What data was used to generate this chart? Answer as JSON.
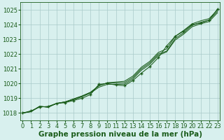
{
  "x": [
    0,
    1,
    2,
    3,
    4,
    5,
    6,
    7,
    8,
    9,
    10,
    11,
    12,
    13,
    14,
    15,
    16,
    17,
    18,
    19,
    20,
    21,
    22,
    23
  ],
  "line_upper": [
    1018.0,
    1018.1,
    1018.45,
    1018.4,
    1018.65,
    1018.75,
    1018.95,
    1019.15,
    1019.4,
    1019.85,
    1020.05,
    1020.1,
    1020.15,
    1020.5,
    1021.1,
    1021.5,
    1022.1,
    1022.35,
    1023.2,
    1023.6,
    1024.05,
    1024.25,
    1024.4,
    1025.0
  ],
  "line_mid1": [
    1018.0,
    1018.1,
    1018.45,
    1018.4,
    1018.65,
    1018.75,
    1018.95,
    1019.15,
    1019.4,
    1019.85,
    1020.05,
    1020.05,
    1020.05,
    1020.4,
    1021.0,
    1021.4,
    1022.0,
    1022.2,
    1023.05,
    1023.45,
    1023.95,
    1024.15,
    1024.3,
    1024.9
  ],
  "line_mid2": [
    1018.0,
    1018.1,
    1018.45,
    1018.4,
    1018.65,
    1018.75,
    1018.9,
    1019.1,
    1019.35,
    1019.75,
    1019.95,
    1019.95,
    1019.95,
    1020.3,
    1020.9,
    1021.3,
    1021.9,
    1022.15,
    1022.95,
    1023.35,
    1023.85,
    1024.05,
    1024.2,
    1024.8
  ],
  "line_marked": [
    1018.0,
    1018.15,
    1018.4,
    1018.45,
    1018.65,
    1018.7,
    1018.85,
    1019.0,
    1019.25,
    1019.95,
    1020.0,
    1019.9,
    1019.85,
    1020.2,
    1020.7,
    1021.15,
    1021.75,
    1022.55,
    1023.2,
    1023.55,
    1024.0,
    1024.1,
    1024.3,
    1025.05
  ],
  "background_color": "#d8f0ee",
  "grid_color": "#aacaca",
  "line_color": "#1a5c1a",
  "xlabel": "Graphe pression niveau de la mer (hPa)",
  "ylim": [
    1017.5,
    1025.5
  ],
  "yticks": [
    1018,
    1019,
    1020,
    1021,
    1022,
    1023,
    1024,
    1025
  ],
  "xticks": [
    0,
    1,
    2,
    3,
    4,
    5,
    6,
    7,
    8,
    9,
    10,
    11,
    12,
    13,
    14,
    15,
    16,
    17,
    18,
    19,
    20,
    21,
    22,
    23
  ],
  "xlim": [
    -0.3,
    23.3
  ],
  "xlabel_fontsize": 7.5,
  "tick_fontsize": 6.0
}
